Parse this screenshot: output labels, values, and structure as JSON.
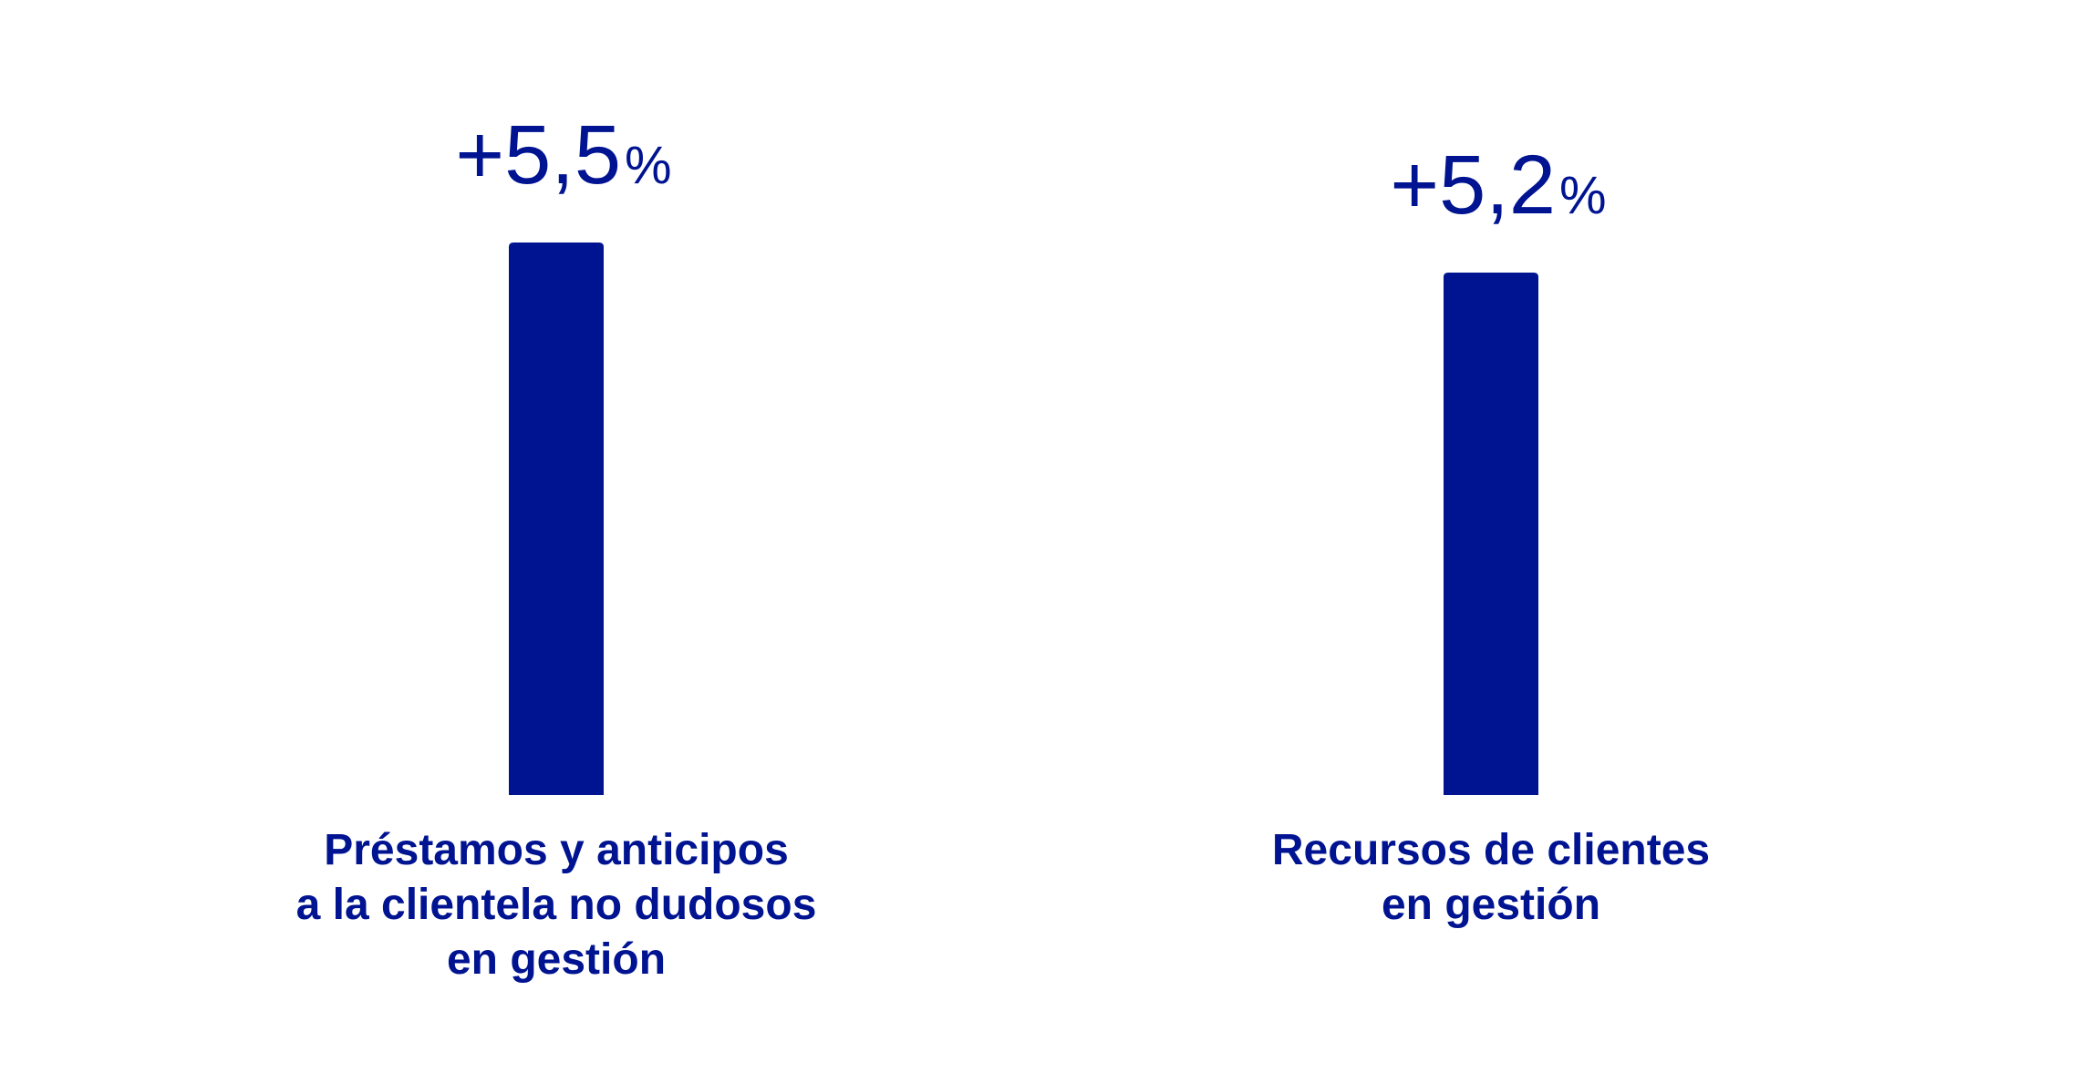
{
  "colors": {
    "bar": "#001391",
    "text": "#001391",
    "background": "#ffffff"
  },
  "chart_data": {
    "type": "bar",
    "title": "",
    "xlabel": "",
    "ylabel": "",
    "grid": false,
    "legend": "none",
    "ylim": [
      0,
      5.5
    ],
    "categories": [
      [
        "Préstamos y anticipos",
        "a la clientela no dudosos",
        "en gestión"
      ],
      [
        "Recursos de clientes",
        "en gestión"
      ]
    ],
    "values": [
      5.5,
      5.2
    ],
    "value_labels": [
      {
        "number": "+5,5",
        "unit": "%"
      },
      {
        "number": "+5,2",
        "unit": "%"
      }
    ]
  }
}
